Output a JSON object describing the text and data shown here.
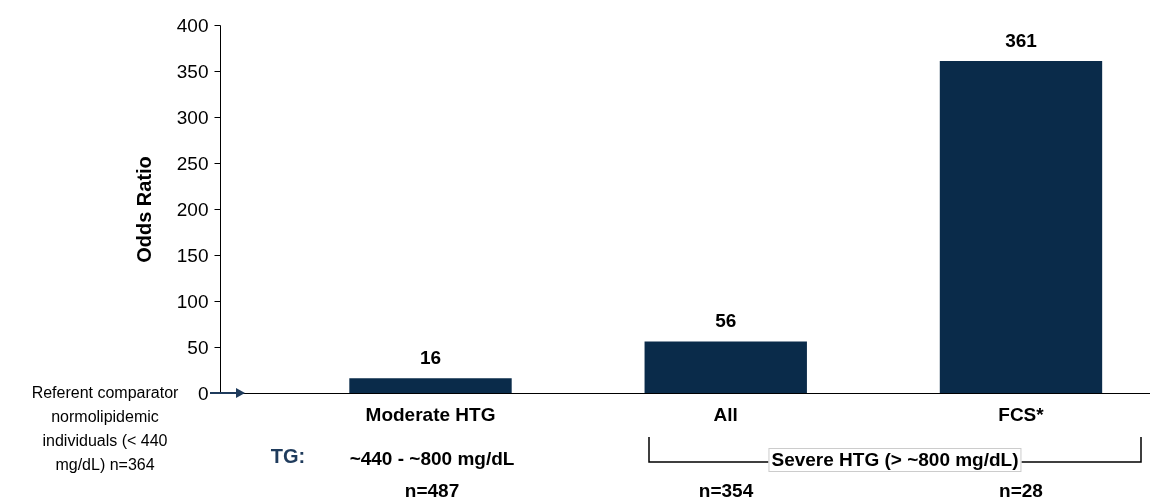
{
  "chart_data": {
    "type": "bar",
    "ylabel": "Odds Ratio",
    "categories": [
      "Moderate HTG",
      "All",
      "FCS*"
    ],
    "values": [
      16,
      56,
      361
    ],
    "color": "#0a2b4a",
    "data_labels": true,
    "ylim": [
      0,
      400
    ],
    "yticks": [
      0,
      50,
      100,
      150,
      200,
      250,
      300,
      350,
      400
    ],
    "grid": false,
    "annotations": [
      "Referent comparator normolipidemic individuals (< 440 mg/dL) n=364",
      "TG:",
      "~440 - ~800 mg/dL",
      "Severe HTG (> ~800 mg/dL)",
      "n=487",
      "n=354",
      "n=28"
    ]
  }
}
